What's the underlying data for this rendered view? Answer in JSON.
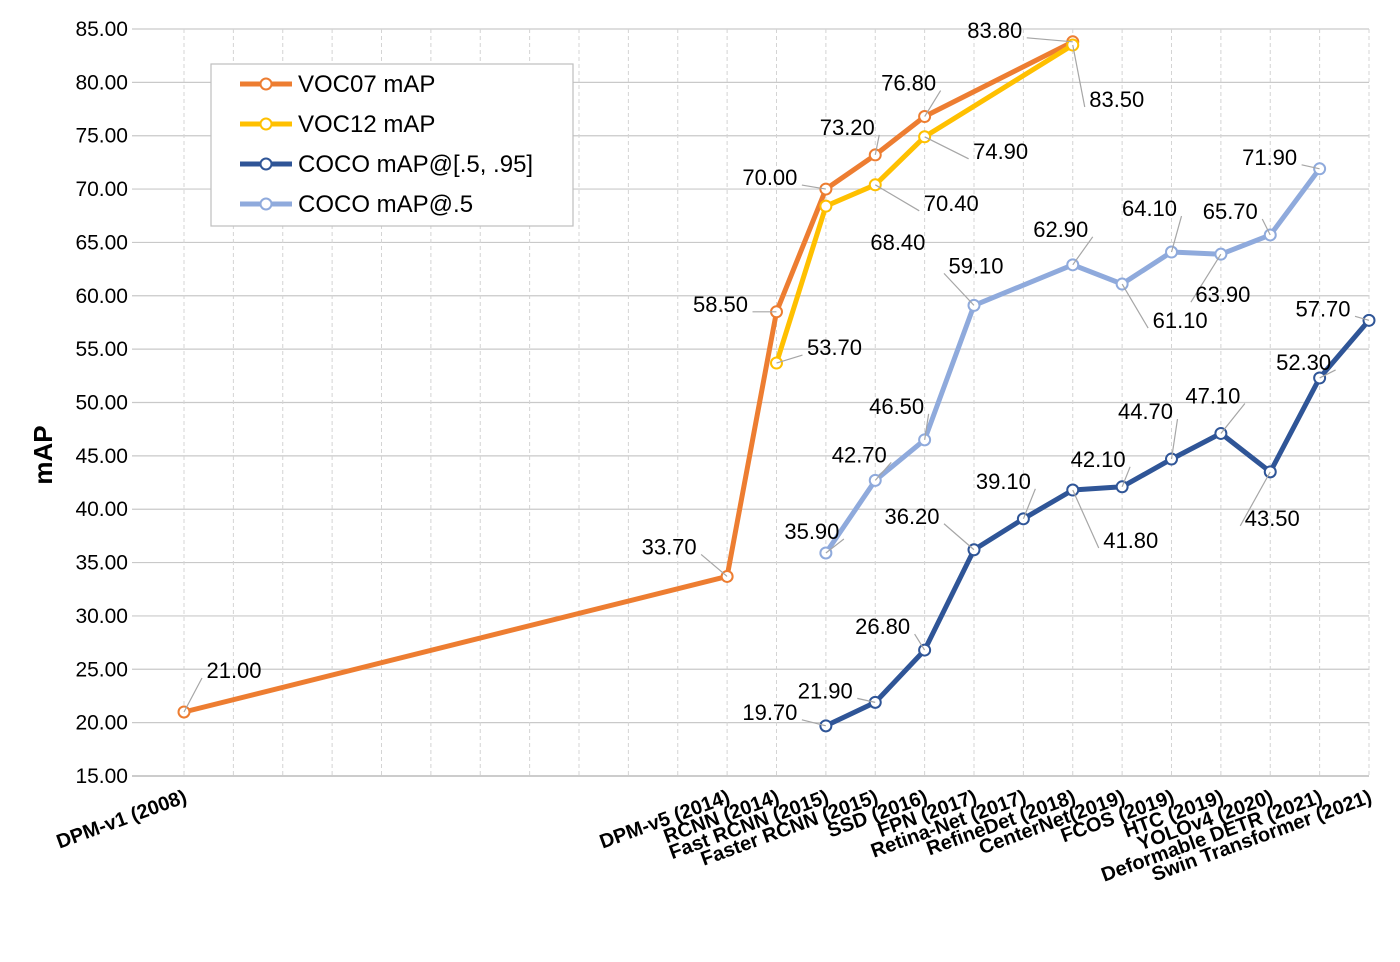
{
  "chart_data": {
    "type": "line",
    "title": "",
    "xlabel": "",
    "ylabel": "mAP",
    "ylim": [
      15,
      85
    ],
    "ytick_step": 5,
    "grid": true,
    "legend_position": "top-left",
    "categories": [
      "DPM-v1 (2008)",
      "",
      "",
      "",
      "",
      "",
      "",
      "",
      "",
      "",
      "",
      "DPM-v5 (2014)",
      "RCNN (2014)",
      "Fast RCNN (2015)",
      "Faster RCNN (2015)",
      "SSD (2016)",
      "FPN (2017)",
      "Retina-Net (2017)",
      "RefineDet (2018)",
      "CenterNet(2019)",
      "FCOS (2019)",
      "HTC (2019)",
      "YOLOv4 (2020)",
      "Deformable DETR (2021)",
      "Swin Transformer (2021)"
    ],
    "series": [
      {
        "name": "VOC07 mAP",
        "color": "#ED7D31",
        "values": [
          21.0,
          null,
          null,
          null,
          null,
          null,
          null,
          null,
          null,
          null,
          null,
          33.7,
          58.5,
          70.0,
          73.2,
          76.8,
          null,
          null,
          83.8,
          null,
          null,
          null,
          null,
          null,
          null
        ],
        "label_texts": [
          "21.00",
          null,
          null,
          null,
          null,
          null,
          null,
          null,
          null,
          null,
          null,
          "33.70",
          "58.50",
          "70.00",
          "73.20",
          "76.80",
          null,
          null,
          "83.80",
          null,
          null,
          null,
          null,
          null,
          null
        ]
      },
      {
        "name": "VOC12 mAP",
        "color": "#FFC000",
        "values": [
          null,
          null,
          null,
          null,
          null,
          null,
          null,
          null,
          null,
          null,
          null,
          null,
          53.7,
          68.4,
          70.4,
          74.9,
          null,
          null,
          83.5,
          null,
          null,
          null,
          null,
          null,
          null
        ],
        "label_texts": [
          null,
          null,
          null,
          null,
          null,
          null,
          null,
          null,
          null,
          null,
          null,
          null,
          "53.70",
          "68.40",
          "70.40",
          "74.90",
          null,
          null,
          "83.50",
          null,
          null,
          null,
          null,
          null,
          null
        ]
      },
      {
        "name": "COCO mAP@[.5, .95]",
        "color": "#2F5597",
        "values": [
          null,
          null,
          null,
          null,
          null,
          null,
          null,
          null,
          null,
          null,
          null,
          null,
          null,
          19.7,
          21.9,
          26.8,
          36.2,
          39.1,
          41.8,
          42.1,
          44.7,
          47.1,
          43.5,
          52.3,
          57.7
        ],
        "label_texts": [
          null,
          null,
          null,
          null,
          null,
          null,
          null,
          null,
          null,
          null,
          null,
          null,
          null,
          "19.70",
          "21.90",
          "26.80",
          "36.20",
          "39.10",
          "41.80",
          "42.10",
          "44.70",
          "47.10",
          "43.50",
          "52.30",
          "57.70"
        ]
      },
      {
        "name": "COCO mAP@.5",
        "color": "#8FAADC",
        "values": [
          null,
          null,
          null,
          null,
          null,
          null,
          null,
          null,
          null,
          null,
          null,
          null,
          null,
          35.9,
          42.7,
          46.5,
          59.1,
          null,
          62.9,
          61.1,
          64.1,
          63.9,
          65.7,
          71.9,
          null
        ],
        "label_texts": [
          null,
          null,
          null,
          null,
          null,
          null,
          null,
          null,
          null,
          null,
          null,
          null,
          null,
          "35.90",
          "42.70",
          "46.50",
          "59.10",
          null,
          "62.90",
          "61.10",
          "64.10",
          "63.90",
          "65.70",
          "71.90",
          null
        ]
      }
    ]
  }
}
